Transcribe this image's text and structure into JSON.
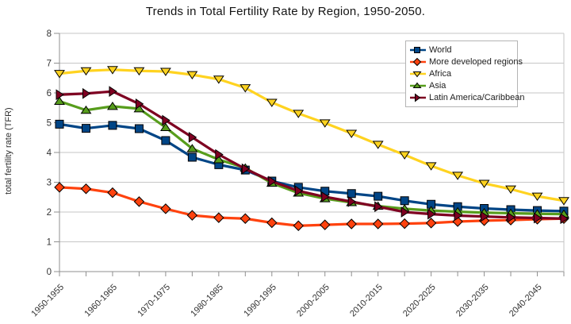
{
  "title": "Trends in Total Fertility Rate by Region, 1950-2050.",
  "y_axis": {
    "title": "total fertility rate (TFR)",
    "min": 0,
    "max": 8,
    "tick_step": 1,
    "tick_labels": [
      "0",
      "1",
      "2",
      "3",
      "4",
      "5",
      "6",
      "7",
      "8"
    ]
  },
  "x_axis": {
    "shown_tick_labels": [
      "1950-1955",
      "1960-1965",
      "1970-1975",
      "1980-1985",
      "1990-1995",
      "2000-2005",
      "2010-2015",
      "2020-2025",
      "2030-2035",
      "2040-2045"
    ],
    "label_rotation_deg": -45
  },
  "legend": {
    "position": "top-right-inside",
    "items": [
      "World",
      "More developed regions",
      "Africa",
      "Asia",
      "Latin America/Caribbean"
    ]
  },
  "colors": {
    "world": "#004586",
    "more_developed": "#FF420E",
    "africa": "#FFD320",
    "asia": "#579D1C",
    "latin_america": "#7E0021",
    "gridline": "#c6c6c6",
    "axis": "#8f8f8f",
    "tick_text": "#333333",
    "legend_border": "#b4b4b4",
    "background": "#ffffff"
  },
  "chart_data": {
    "type": "line",
    "title": "Trends in Total Fertility Rate by Region, 1950-2050.",
    "ylabel": "total fertility rate (TFR)",
    "xlabel": "",
    "ylim": [
      0,
      8
    ],
    "grid": true,
    "legend_position": "top-right",
    "x": [
      "1950-1955",
      "1955-1960",
      "1960-1965",
      "1965-1970",
      "1970-1975",
      "1975-1980",
      "1980-1985",
      "1985-1990",
      "1990-1995",
      "1995-2000",
      "2000-2005",
      "2005-2010",
      "2010-2015",
      "2015-2020",
      "2020-2025",
      "2025-2030",
      "2030-2035",
      "2035-2040",
      "2040-2045",
      "2045-2050"
    ],
    "x_tick_label_indices": [
      0,
      2,
      4,
      6,
      8,
      10,
      12,
      14,
      16,
      18
    ],
    "series": [
      {
        "name": "World",
        "color": "#004586",
        "marker": "square",
        "values": [
          4.95,
          4.81,
          4.91,
          4.8,
          4.4,
          3.84,
          3.59,
          3.41,
          3.04,
          2.83,
          2.7,
          2.62,
          2.53,
          2.38,
          2.26,
          2.18,
          2.12,
          2.08,
          2.05,
          2.03
        ]
      },
      {
        "name": "More developed regions",
        "color": "#FF420E",
        "marker": "diamond",
        "values": [
          2.83,
          2.78,
          2.65,
          2.35,
          2.11,
          1.89,
          1.81,
          1.78,
          1.64,
          1.54,
          1.57,
          1.6,
          1.6,
          1.61,
          1.63,
          1.68,
          1.71,
          1.73,
          1.76,
          1.78
        ]
      },
      {
        "name": "Africa",
        "color": "#FFD320",
        "marker": "triangle-down",
        "values": [
          6.65,
          6.74,
          6.78,
          6.74,
          6.72,
          6.61,
          6.46,
          6.17,
          5.68,
          5.31,
          4.99,
          4.64,
          4.27,
          3.92,
          3.55,
          3.23,
          2.96,
          2.77,
          2.53,
          2.38
        ]
      },
      {
        "name": "Asia",
        "color": "#579D1C",
        "marker": "triangle-up",
        "values": [
          5.72,
          5.42,
          5.55,
          5.47,
          4.84,
          4.13,
          3.76,
          3.48,
          2.97,
          2.64,
          2.45,
          2.32,
          2.2,
          2.11,
          2.05,
          2.01,
          1.98,
          1.96,
          1.94,
          1.93
        ]
      },
      {
        "name": "Latin America/Caribbean",
        "color": "#7E0021",
        "marker": "triangle-right",
        "values": [
          5.94,
          5.98,
          6.05,
          5.63,
          5.08,
          4.51,
          3.93,
          3.45,
          3.03,
          2.71,
          2.51,
          2.35,
          2.18,
          2.0,
          1.93,
          1.88,
          1.85,
          1.82,
          1.8,
          1.78
        ]
      }
    ]
  }
}
